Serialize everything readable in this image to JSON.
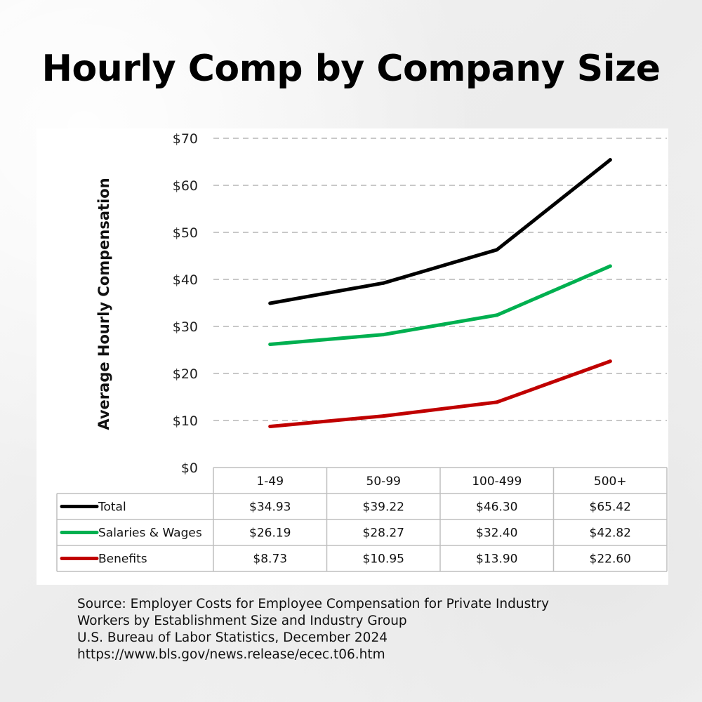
{
  "title": "Hourly Comp by Company Size",
  "chart_data": {
    "type": "line",
    "ylabel": "Average Hourly Compensation",
    "ylim": [
      0,
      70
    ],
    "y_ticks": [
      "$0",
      "$10",
      "$20",
      "$30",
      "$40",
      "$50",
      "$60",
      "$70"
    ],
    "grid": "horizontal dashed",
    "categories": [
      "1-49",
      "50-99",
      "100-499",
      "500+"
    ],
    "series": [
      {
        "name": "Total",
        "color": "#000000",
        "values": [
          34.93,
          39.22,
          46.3,
          65.42
        ],
        "labels": [
          "$34.93",
          "$39.22",
          "$46.30",
          "$65.42"
        ]
      },
      {
        "name": "Salaries & Wages",
        "color": "#00b050",
        "values": [
          26.19,
          28.27,
          32.4,
          42.82
        ],
        "labels": [
          "$26.19",
          "$28.27",
          "$32.40",
          "$42.82"
        ]
      },
      {
        "name": "Benefits",
        "color": "#c00000",
        "values": [
          8.73,
          10.95,
          13.9,
          22.6
        ],
        "labels": [
          "$8.73",
          "$10.95",
          "$13.90",
          "$22.60"
        ]
      }
    ],
    "legend": "data table below chart"
  },
  "source": [
    "Source: Employer Costs for Employee Compensation for Private Industry",
    "Workers by Establishment Size and Industry Group",
    "U.S. Bureau of Labor Statistics, December 2024",
    "https://www.bls.gov/news.release/ecec.t06.htm"
  ]
}
